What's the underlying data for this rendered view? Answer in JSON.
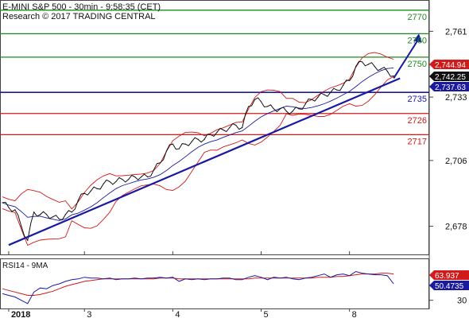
{
  "header": {
    "line1": "E-MINI S&P 500 - 30min - 9:58:35 (CET)",
    "line2": "Research © 2017 TRADING CENTRAL"
  },
  "colors": {
    "resistance": "#1e8a1e",
    "pivot": "#1a1aa0",
    "support": "#d11a1a",
    "price": "#111111",
    "bollinger": "#d11a1a",
    "moving_average": "#1a1aa0",
    "trendline": "#1a1aa0",
    "arrow": "#1a1aa0"
  },
  "chart_data": [
    {
      "type": "line",
      "ylim": [
        2666,
        2774
      ],
      "y_ticks": [
        2761,
        2733,
        2706,
        2678
      ],
      "y_tick_labels": [
        "2,761",
        "2,733",
        "2,706",
        "2,678"
      ],
      "x_ticks": [
        1,
        13,
        27,
        41,
        55
      ],
      "x_tick_labels": [
        "2018",
        "3",
        "4",
        "5",
        "8"
      ],
      "levels": [
        {
          "value": 2770,
          "label": "2770",
          "kind": "resistance"
        },
        {
          "value": 2760,
          "label": "2760",
          "kind": "resistance"
        },
        {
          "value": 2750,
          "label": "2750",
          "kind": "resistance"
        },
        {
          "value": 2735,
          "label": "2735",
          "kind": "pivot"
        },
        {
          "value": 2726,
          "label": "2726",
          "kind": "support"
        },
        {
          "value": 2717,
          "label": "2717",
          "kind": "support"
        }
      ],
      "price_labels": [
        {
          "value": 2744.94,
          "label": "2,744.94",
          "color": "#d11a1a"
        },
        {
          "value": 2742.25,
          "label": "2,742.25",
          "color": "#111111"
        },
        {
          "value": 2737.63,
          "label": "2,737.63",
          "color": "#1a1aa0"
        }
      ],
      "series": [
        {
          "values": [
            2688,
            2686,
            2685,
            2678,
            2672,
            2684,
            2683,
            2683,
            2682,
            2681,
            2683,
            2684,
            2689,
            2692,
            2693,
            2694,
            2696,
            2697,
            2697,
            2698,
            2698,
            2699,
            2699,
            2699,
            2702,
            2705,
            2710,
            2713,
            2711,
            2713,
            2714,
            2715,
            2715,
            2717,
            2718,
            2719,
            2720,
            2721,
            2720,
            2729,
            2732,
            2731,
            2729,
            2728,
            2728,
            2727,
            2727,
            2728,
            2730,
            2732,
            2733,
            2734,
            2735,
            2736,
            2738,
            2740,
            2746,
            2748,
            2747,
            2746,
            2745,
            2744,
            2742
          ]
        }
      ],
      "trendline": {
        "x": [
          1,
          63
        ],
        "y": [
          2670,
          2741
        ]
      },
      "arrow": {
        "x": [
          62,
          66
        ],
        "y": [
          2741,
          2760
        ]
      }
    },
    {
      "type": "line",
      "title": "RSI14 - 9MA",
      "ylim": [
        20,
        80
      ],
      "y_ticks": [
        30
      ],
      "y_tick_labels": [
        "30"
      ],
      "x_ticks": [
        1,
        13,
        27,
        41,
        55
      ],
      "x_tick_labels": [
        "2018",
        "3",
        "4",
        "5",
        "8"
      ],
      "price_labels": [
        {
          "value": 63.937,
          "label": "63.937",
          "color": "#d11a1a"
        },
        {
          "value": 50.4735,
          "label": "50.4735",
          "color": "#1a1aa0"
        }
      ],
      "series": [
        {
          "values": [
            38,
            36,
            34,
            30,
            26,
            40,
            45,
            44,
            48,
            50,
            53,
            55,
            56,
            58,
            57,
            57,
            56,
            57,
            55,
            56,
            56,
            57,
            56,
            57,
            57,
            58,
            57,
            58,
            53,
            56,
            55,
            56,
            55,
            56,
            56,
            57,
            57,
            55,
            55,
            58,
            60,
            58,
            55,
            58,
            57,
            58,
            56,
            55,
            57,
            58,
            60,
            62,
            58,
            61,
            62,
            60,
            65,
            63,
            62,
            61,
            61,
            60,
            50
          ]
        },
        {
          "values": [
            44,
            42,
            40,
            38,
            36,
            36,
            37,
            39,
            41,
            44,
            47,
            49,
            51,
            53,
            54,
            55,
            56,
            56,
            56,
            56,
            56,
            56,
            56,
            56,
            56,
            57,
            57,
            57,
            56,
            56,
            56,
            56,
            56,
            56,
            56,
            56,
            56,
            56,
            56,
            56,
            57,
            57,
            57,
            57,
            57,
            57,
            57,
            57,
            57,
            57,
            58,
            58,
            58,
            59,
            59,
            60,
            61,
            62,
            62,
            62,
            63,
            63,
            62
          ]
        }
      ]
    }
  ]
}
